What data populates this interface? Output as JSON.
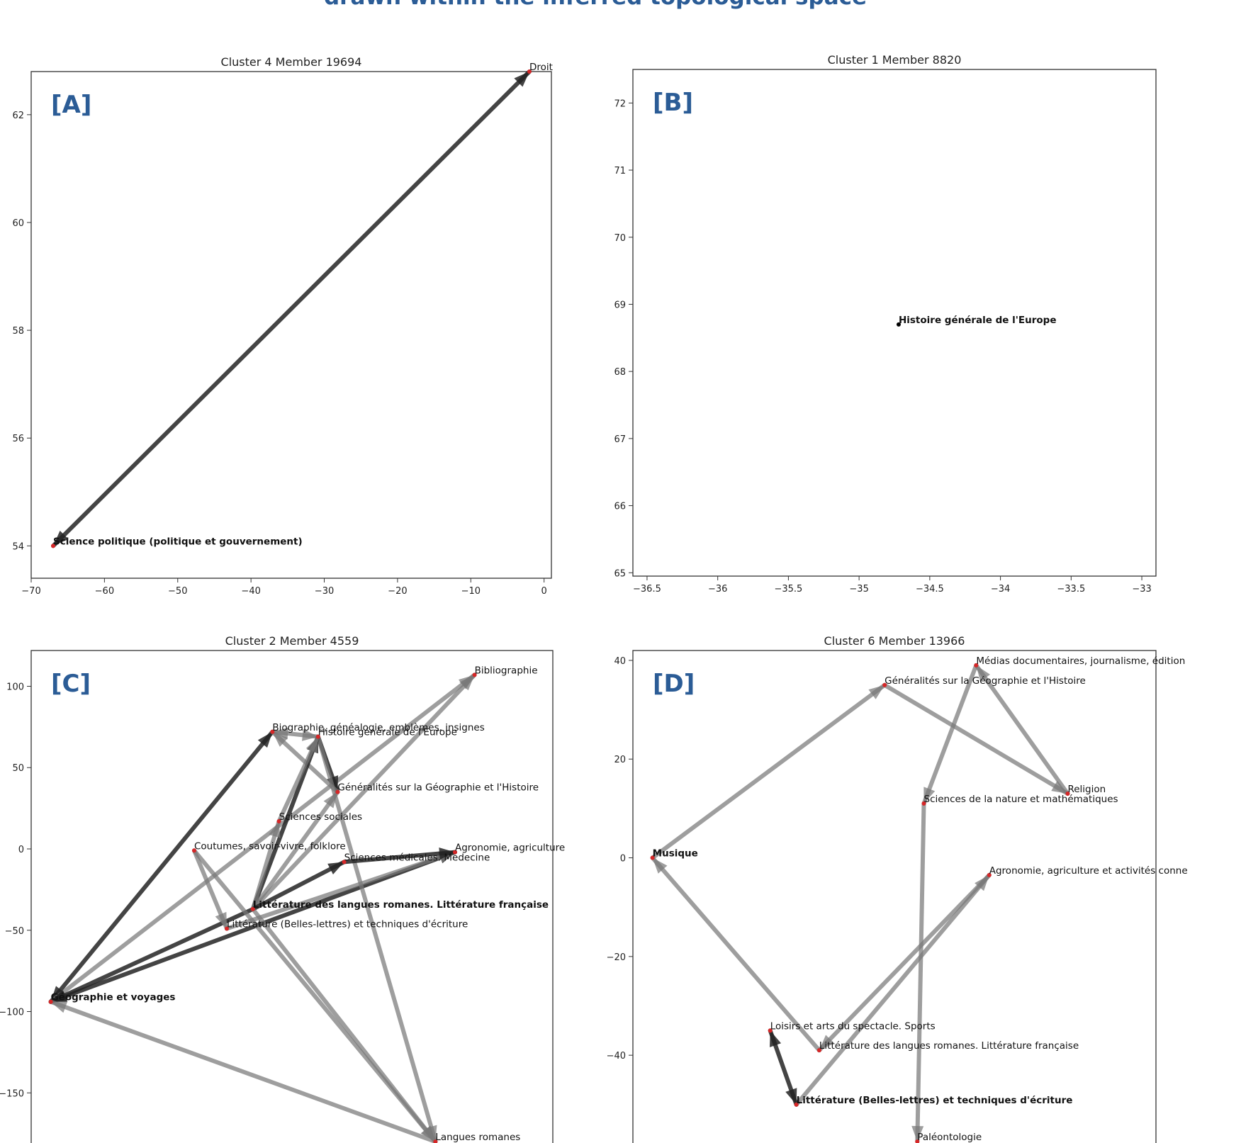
{
  "figure_title": "drawn within the inferred topological space",
  "chart_data": [
    {
      "type": "network",
      "panel_label": "[A]",
      "title": "Cluster 4 Member 19694",
      "xlim": [
        -70,
        1
      ],
      "ylim": [
        53.4,
        62.8
      ],
      "xticks": [
        -70,
        -60,
        -50,
        -40,
        -30,
        -20,
        -10,
        0
      ],
      "yticks": [
        54,
        56,
        58,
        60,
        62
      ],
      "nodes": [
        {
          "label": "Droit",
          "x": -2,
          "y": 62.8,
          "bold": false
        },
        {
          "label": "Science politique (politique et gouvernement)",
          "x": -67,
          "y": 54,
          "bold": true
        }
      ],
      "edges": [
        {
          "from": 0,
          "to": 1,
          "shade": "dark",
          "arrow": "both"
        }
      ]
    },
    {
      "type": "network",
      "panel_label": "[B]",
      "title": "Cluster 1 Member 8820",
      "xlim": [
        -36.6,
        -32.9
      ],
      "ylim": [
        64.95,
        72.5
      ],
      "xticks": [
        -36.5,
        -36.0,
        -35.5,
        -35.0,
        -34.5,
        -34.0,
        -33.5,
        -33.0
      ],
      "yticks": [
        65,
        66,
        67,
        68,
        69,
        70,
        71,
        72
      ],
      "nodes": [
        {
          "label": "Histoire générale de l'Europe",
          "x": -34.72,
          "y": 68.7,
          "bold": true
        }
      ],
      "edges": []
    },
    {
      "type": "network",
      "panel_label": "[C]",
      "title": "Cluster 2 Member 4559",
      "xlim": [
        -70,
        10
      ],
      "ylim": [
        -183,
        122
      ],
      "xticks": [],
      "yticks": [
        -150,
        -100,
        -50,
        0,
        50,
        100
      ],
      "nodes": [
        {
          "label": "Bibliographie",
          "x": -2,
          "y": 107,
          "bold": false
        },
        {
          "label": "Biographie, généalogie, emblèmes, insignes",
          "x": -33,
          "y": 72,
          "bold": false
        },
        {
          "label": "Histoire générale de l'Europe",
          "x": -26,
          "y": 69,
          "bold": false
        },
        {
          "label": "Généralités sur la Géographie et l'Histoire",
          "x": -23,
          "y": 35,
          "bold": false
        },
        {
          "label": "Sciences sociales",
          "x": -32,
          "y": 17,
          "bold": false
        },
        {
          "label": "Coutumes, savoir-vivre, folklore",
          "x": -45,
          "y": -1,
          "bold": false
        },
        {
          "label": "Sciences médicales. Médecine",
          "x": -22,
          "y": -8,
          "bold": false
        },
        {
          "label": "Agronomie, agriculture",
          "x": -5,
          "y": -2,
          "bold": false
        },
        {
          "label": "Littérature des langues romanes. Littérature française",
          "x": -36,
          "y": -37,
          "bold": true
        },
        {
          "label": "Littérature (Belles-lettres) et techniques d'écriture",
          "x": -40,
          "y": -49,
          "bold": false
        },
        {
          "label": "Géographie et voyages",
          "x": -67,
          "y": -94,
          "bold": true
        },
        {
          "label": "Langues romanes",
          "x": -8,
          "y": -180,
          "bold": false
        }
      ],
      "edges": [
        {
          "from": 10,
          "to": 1,
          "shade": "dark",
          "arrow": "both"
        },
        {
          "from": 10,
          "to": 0,
          "shade": "light",
          "arrow": "end"
        },
        {
          "from": 10,
          "to": 7,
          "shade": "dark",
          "arrow": "both"
        },
        {
          "from": 10,
          "to": 8,
          "shade": "dark",
          "arrow": "start"
        },
        {
          "from": 11,
          "to": 10,
          "shade": "light",
          "arrow": "end"
        },
        {
          "from": 2,
          "to": 1,
          "shade": "light",
          "arrow": "both"
        },
        {
          "from": 2,
          "to": 3,
          "shade": "dark",
          "arrow": "end"
        },
        {
          "from": 2,
          "to": 11,
          "shade": "light",
          "arrow": "end"
        },
        {
          "from": 3,
          "to": 1,
          "shade": "light",
          "arrow": "end"
        },
        {
          "from": 8,
          "to": 2,
          "shade": "dark",
          "arrow": "end"
        },
        {
          "from": 8,
          "to": 4,
          "shade": "light",
          "arrow": "end"
        },
        {
          "from": 8,
          "to": 0,
          "shade": "light",
          "arrow": "end"
        },
        {
          "from": 8,
          "to": 3,
          "shade": "light",
          "arrow": "end"
        },
        {
          "from": 8,
          "to": 6,
          "shade": "dark",
          "arrow": "end"
        },
        {
          "from": 8,
          "to": 11,
          "shade": "light",
          "arrow": "end"
        },
        {
          "from": 4,
          "to": 2,
          "shade": "light",
          "arrow": "end"
        },
        {
          "from": 5,
          "to": 9,
          "shade": "light",
          "arrow": "end"
        },
        {
          "from": 5,
          "to": 11,
          "shade": "light",
          "arrow": "end"
        },
        {
          "from": 9,
          "to": 7,
          "shade": "light",
          "arrow": "end"
        },
        {
          "from": 6,
          "to": 7,
          "shade": "dark",
          "arrow": "end"
        }
      ]
    },
    {
      "type": "network",
      "panel_label": "[D]",
      "title": "Cluster 6 Member 13966",
      "xlim": [
        -70,
        10
      ],
      "ylim": [
        -58.5,
        42
      ],
      "xticks": [],
      "yticks": [
        -40,
        -20,
        0,
        20,
        40
      ],
      "nodes": [
        {
          "label": "Médias documentaires, journalisme, édition",
          "x": -17.5,
          "y": 39,
          "bold": false
        },
        {
          "label": "Généralités sur la Géographie et l'Histoire",
          "x": -31.5,
          "y": 35,
          "bold": false
        },
        {
          "label": "Religion",
          "x": -3.5,
          "y": 13,
          "bold": false
        },
        {
          "label": "Sciences de la nature et mathématiques",
          "x": -25.5,
          "y": 11,
          "bold": false
        },
        {
          "label": "Musique",
          "x": -67,
          "y": 0,
          "bold": true
        },
        {
          "label": "Agronomie, agriculture et activités conne",
          "x": -15.5,
          "y": -3.5,
          "bold": false
        },
        {
          "label": "Loisirs et arts du spectacle. Sports",
          "x": -49,
          "y": -35,
          "bold": false
        },
        {
          "label": "Littérature des langues romanes. Littérature française",
          "x": -41.5,
          "y": -39,
          "bold": false
        },
        {
          "label": "Littérature (Belles-lettres) et techniques d'écriture",
          "x": -45,
          "y": -50,
          "bold": true
        },
        {
          "label": "Paléontologie",
          "x": -26.5,
          "y": -57.5,
          "bold": false
        }
      ],
      "edges": [
        {
          "from": 4,
          "to": 1,
          "shade": "light",
          "arrow": "end"
        },
        {
          "from": 1,
          "to": 2,
          "shade": "light",
          "arrow": "end"
        },
        {
          "from": 0,
          "to": 2,
          "shade": "light",
          "arrow": "start"
        },
        {
          "from": 0,
          "to": 3,
          "shade": "light",
          "arrow": "end"
        },
        {
          "from": 3,
          "to": 9,
          "shade": "light",
          "arrow": "end"
        },
        {
          "from": 7,
          "to": 4,
          "shade": "light",
          "arrow": "end"
        },
        {
          "from": 5,
          "to": 7,
          "shade": "light",
          "arrow": "end"
        },
        {
          "from": 8,
          "to": 5,
          "shade": "light",
          "arrow": "end"
        },
        {
          "from": 6,
          "to": 8,
          "shade": "dark",
          "arrow": "both"
        }
      ]
    }
  ]
}
